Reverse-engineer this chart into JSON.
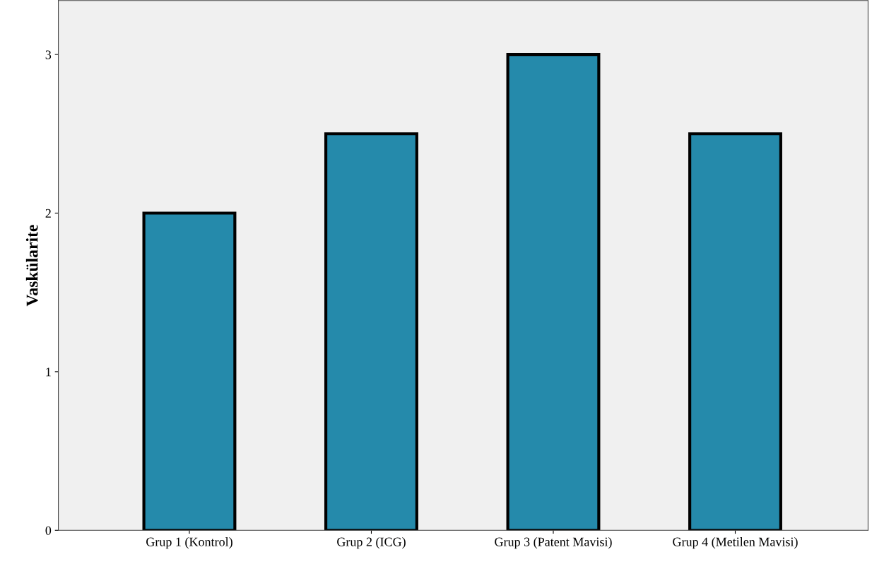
{
  "chart_data": {
    "type": "bar",
    "ylabel": "Vaskülarite",
    "categories": [
      "Grup 1 (Kontrol)",
      "Grup 2 (ICG)",
      "Grup 3 (Patent Mavisi)",
      "Grup 4 (Metilen Mavisi)"
    ],
    "values": [
      2,
      2.5,
      3,
      2.5
    ],
    "color": "#258aab",
    "ylim": [
      0,
      3.34
    ],
    "yticks": [
      0,
      1,
      2,
      3
    ],
    "grid": false,
    "legend": false
  }
}
